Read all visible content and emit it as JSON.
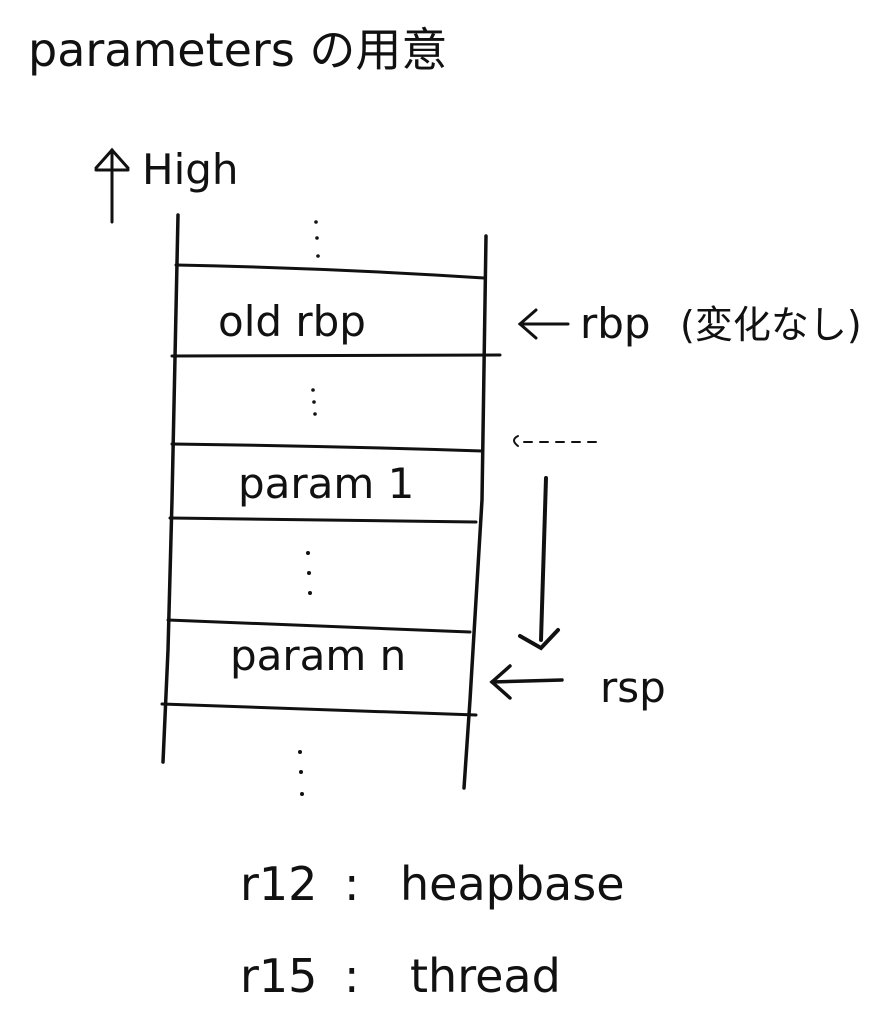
{
  "diagram": {
    "title": "parameters の用意",
    "direction_label": "High",
    "stack_cells": [
      {
        "id": "old-rbp",
        "label": "old rbp"
      },
      {
        "id": "param-1",
        "label": "param 1"
      },
      {
        "id": "param-n",
        "label": "param n"
      }
    ],
    "pointers": {
      "rbp": {
        "label": "rbp",
        "note": "(変化なし)"
      },
      "rsp": {
        "label": "rsp"
      }
    },
    "registers": [
      {
        "name": "r12",
        "value": "heapbase"
      },
      {
        "name": "r15",
        "value": "thread"
      }
    ],
    "ink_color": "#111111"
  }
}
